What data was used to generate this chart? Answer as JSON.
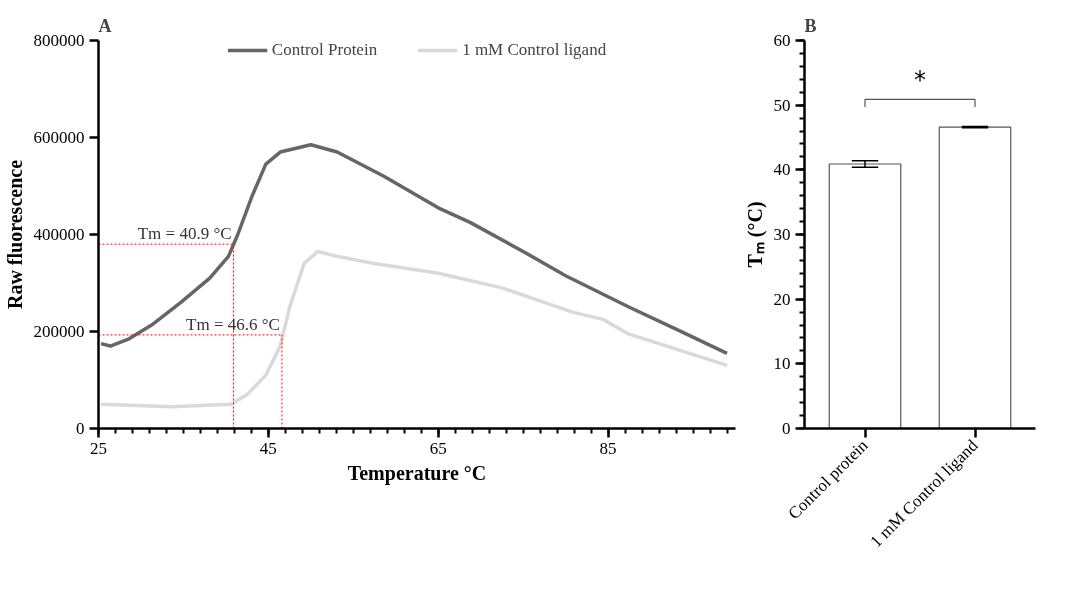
{
  "chart_data": [
    {
      "type": "line",
      "title": "A",
      "xlabel": "Temperature °C",
      "ylabel": "Raw fluorescence",
      "xlim": [
        25,
        100
      ],
      "ylim": [
        0,
        800000
      ],
      "xticks": [
        25,
        45,
        65,
        85
      ],
      "yticks": [
        0,
        200000,
        400000,
        600000,
        800000
      ],
      "legend": "top",
      "line_style": "solid",
      "series": [
        {
          "name": "Control Protein",
          "color": "#666666",
          "x": [
            25.3,
            26.4,
            28.6,
            31.4,
            34.7,
            38.1,
            40.3,
            41.4,
            43.1,
            44.7,
            46.4,
            50,
            53.1,
            58.6,
            65,
            68.75,
            75,
            80,
            87.5,
            93,
            99
          ],
          "values": [
            175000,
            170000,
            185000,
            215000,
            260000,
            310000,
            355000,
            400000,
            480000,
            545000,
            570000,
            585000,
            570000,
            520000,
            455000,
            425000,
            365000,
            315000,
            250000,
            205000,
            155000
          ]
        },
        {
          "name": "1 mM Control ligand",
          "color": "#d9d9d9",
          "x": [
            25.3,
            33.6,
            40.6,
            42.5,
            44.7,
            46.4,
            47.5,
            49.2,
            50.8,
            53.1,
            57.5,
            65,
            72.5,
            80.8,
            84.4,
            87.4,
            99
          ],
          "values": [
            50000,
            45000,
            50000,
            70000,
            110000,
            170000,
            250000,
            340000,
            365000,
            355000,
            340000,
            320000,
            290000,
            240000,
            225000,
            195000,
            130000
          ]
        }
      ],
      "ref_lines": [
        {
          "axis": "x",
          "value": 40.9,
          "label": "Tm = 40.9 °C",
          "color": "#ff0000",
          "line_style": "dotted"
        },
        {
          "axis": "y",
          "value": 380000,
          "color": "#ff0000",
          "line_style": "dotted"
        },
        {
          "axis": "x",
          "value": 46.6,
          "label": "Tm = 46.6 °C",
          "color": "#ff0000",
          "line_style": "dotted"
        },
        {
          "axis": "y",
          "value": 193000,
          "color": "#ff0000",
          "line_style": "dotted"
        }
      ]
    },
    {
      "type": "bar",
      "title": "B",
      "ylabel": "Tₘ (°C)",
      "categories": [
        "Control protein",
        "1 mM Control ligand"
      ],
      "values": [
        40.9,
        46.6
      ],
      "errors": [
        0.5,
        0.1
      ],
      "color": "#ffffff",
      "ylim": [
        0,
        60
      ],
      "yticks": [
        0,
        10,
        20,
        30,
        40,
        50,
        60
      ],
      "annotations": [
        "*"
      ]
    }
  ]
}
